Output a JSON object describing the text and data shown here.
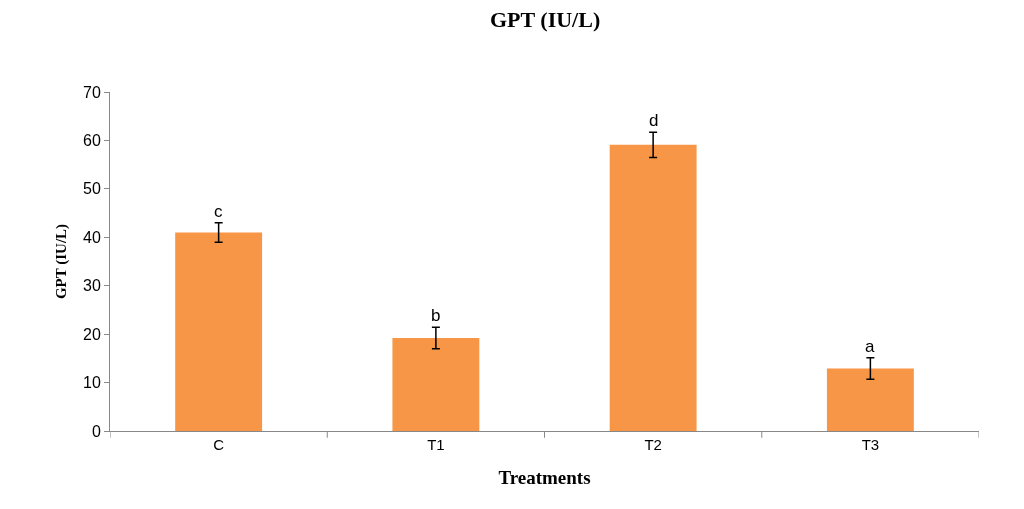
{
  "chart_data": {
    "type": "bar",
    "title": "GPT (IU/L)",
    "xlabel": "Treatments",
    "ylabel": "GPT (IU/L)",
    "categories": [
      "C",
      "T1",
      "T2",
      "T3"
    ],
    "values": [
      41,
      19.2,
      59.1,
      12.9
    ],
    "errors": [
      2,
      2.2,
      2.6,
      2.2
    ],
    "color": "#f79646",
    "ylim": [
      0,
      70
    ],
    "yticks": [
      0,
      10,
      20,
      30,
      40,
      50,
      60,
      70
    ],
    "grid": false,
    "annotations": [
      {
        "text": "c",
        "x": "C",
        "y": 43
      },
      {
        "text": "b",
        "x": "T1",
        "y": 21.4
      },
      {
        "text": "d",
        "x": "T2",
        "y": 61.7
      },
      {
        "text": "a",
        "x": "T3",
        "y": 15.1
      }
    ]
  }
}
